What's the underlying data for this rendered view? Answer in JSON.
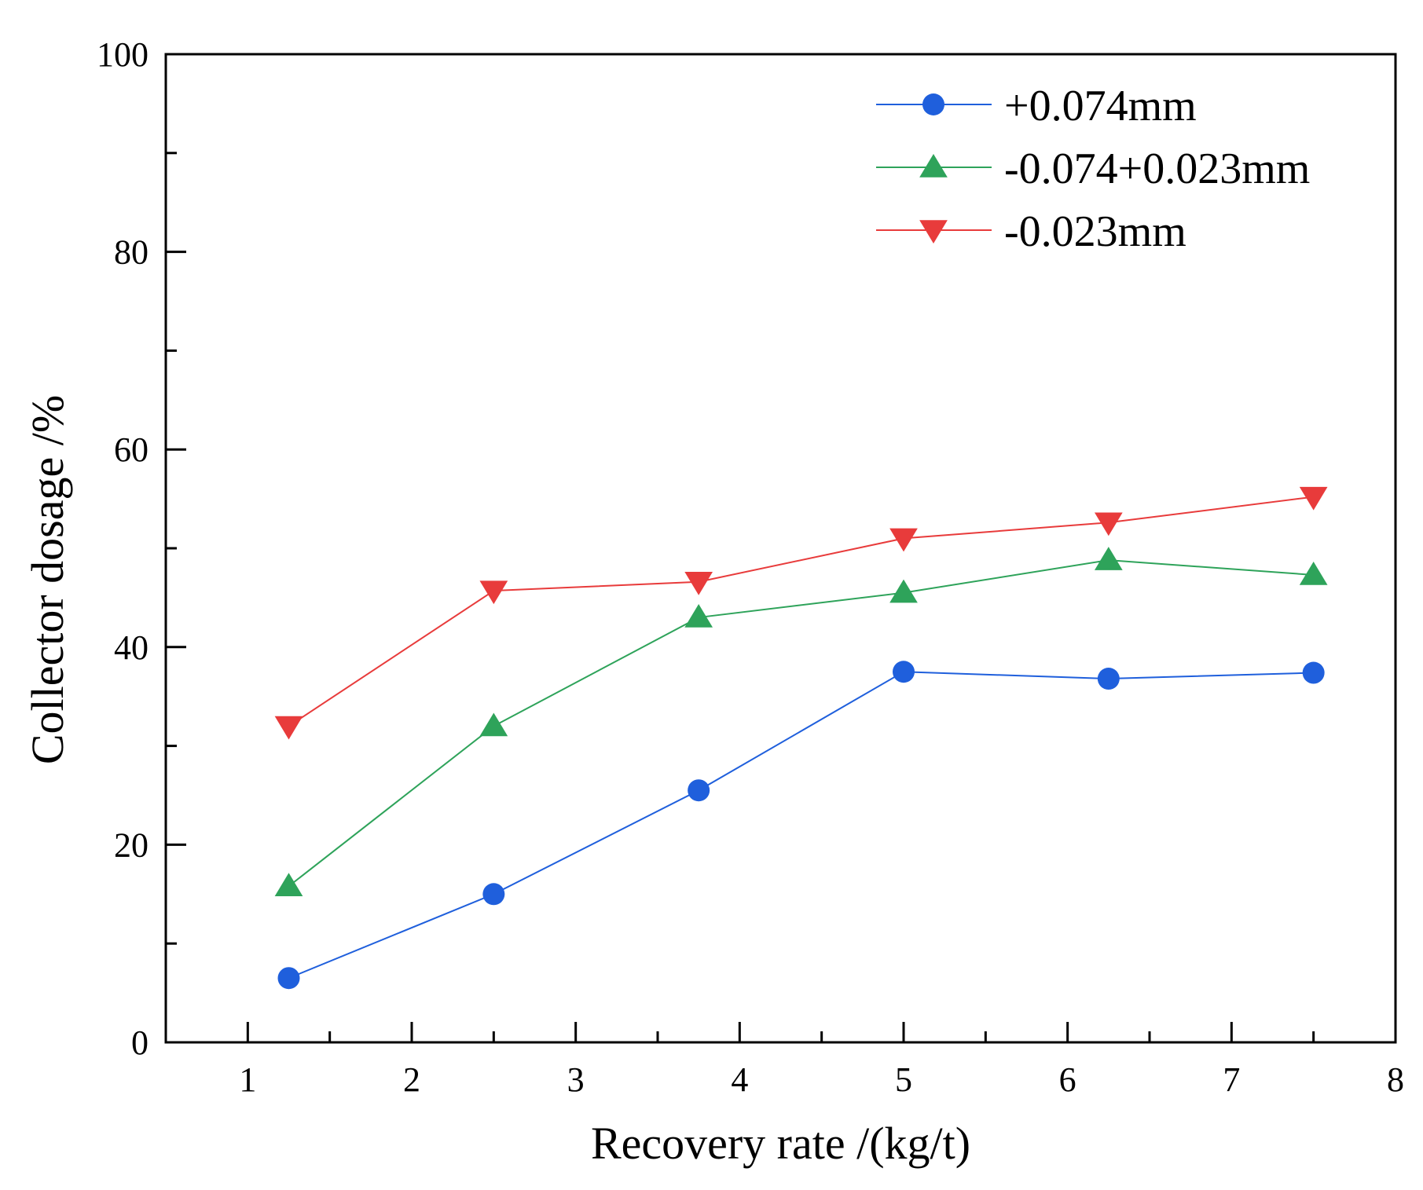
{
  "chart_data": {
    "type": "line",
    "title": "",
    "xlabel": "Recovery rate /(kg/t)",
    "ylabel": "Collector dosage /%",
    "xlim": [
      0.5,
      8
    ],
    "ylim": [
      0,
      100
    ],
    "x_ticks": [
      1,
      2,
      3,
      4,
      5,
      6,
      7,
      8
    ],
    "y_ticks": [
      0,
      20,
      40,
      60,
      80,
      100
    ],
    "x_minor_ticks": [
      1.5,
      2.5,
      3.5,
      4.5,
      5.5,
      6.5,
      7.5
    ],
    "y_minor_ticks": [
      10,
      30,
      50,
      70,
      90
    ],
    "grid": false,
    "legend_position": "top-right",
    "x": [
      1.25,
      2.5,
      3.75,
      5,
      6.25,
      7.5
    ],
    "series": [
      {
        "name": "+0.074mm",
        "marker": "circle",
        "color": "#1f5fdc",
        "values": [
          6.5,
          15.0,
          25.5,
          37.5,
          36.8,
          37.4
        ]
      },
      {
        "name": "-0.074+0.023mm",
        "marker": "triangle-up",
        "color": "#2ea35a",
        "values": [
          15.8,
          32.0,
          43.0,
          45.5,
          48.8,
          47.3
        ]
      },
      {
        "name": "-0.023mm",
        "marker": "triangle-down",
        "color": "#e83b3b",
        "values": [
          32.0,
          45.7,
          46.6,
          51.0,
          52.6,
          55.2
        ]
      }
    ]
  }
}
